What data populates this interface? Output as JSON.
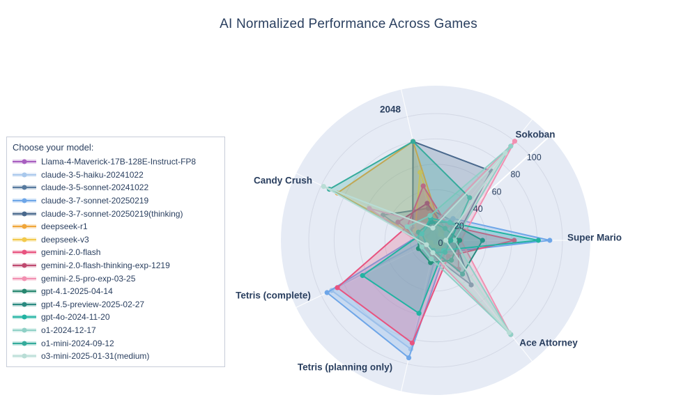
{
  "title": "AI Normalized Performance Across Games",
  "legend": {
    "title": "Choose your model:"
  },
  "chart_data": {
    "type": "radar",
    "categories": [
      "Super Mario",
      "Sokoban",
      "2048",
      "Candy Crush",
      "Tetris (complete)",
      "Tetris (planning only)",
      "Ace Attorney"
    ],
    "radial_ticks": [
      0,
      20,
      40,
      60,
      80,
      100
    ],
    "radial_range": [
      0,
      100
    ],
    "grid": true,
    "legend_position": "left",
    "colors": {
      "title_text": "#2a3f5f",
      "axis_text": "#2a3f5f",
      "polar_bg": "#e6ebf5",
      "grid_line": "#c9cedb",
      "axis_line": "#ffffff"
    },
    "series": [
      {
        "name": "Llama-4-Maverick-17B-128E-Instruct-FP8",
        "color": "#a85fc0",
        "values": [
          6,
          3,
          10,
          7,
          4,
          5,
          4
        ]
      },
      {
        "name": "claude-3-5-haiku-20241022",
        "color": "#a9c8ec",
        "values": [
          4,
          5,
          8,
          5,
          91,
          88,
          4
        ]
      },
      {
        "name": "claude-3-5-sonnet-20241022",
        "color": "#577a9e",
        "values": [
          12,
          20,
          26,
          46,
          8,
          10,
          10
        ]
      },
      {
        "name": "claude-3-7-sonnet-20250219",
        "color": "#6ea6e8",
        "values": [
          90,
          22,
          15,
          12,
          95,
          95,
          12
        ]
      },
      {
        "name": "claude-3-7-sonnet-20250219(thinking)",
        "color": "#49688c",
        "values": [
          15,
          70,
          80,
          20,
          10,
          12,
          45
        ]
      },
      {
        "name": "deepseek-r1",
        "color": "#f0a63a",
        "values": [
          8,
          8,
          80,
          86,
          5,
          6,
          8
        ]
      },
      {
        "name": "deepseek-v3",
        "color": "#f2c94c",
        "values": [
          10,
          6,
          55,
          18,
          4,
          5,
          5
        ]
      },
      {
        "name": "gemini-2.0-flash",
        "color": "#e8537f",
        "values": [
          62,
          15,
          44,
          25,
          86,
          83,
          16
        ]
      },
      {
        "name": "gemini-2.0-flash-thinking-exp-1219",
        "color": "#bf4a70",
        "values": [
          18,
          12,
          30,
          33,
          8,
          10,
          29
        ]
      },
      {
        "name": "gemini-2.5-pro-exp-03-25",
        "color": "#f290b1",
        "values": [
          20,
          100,
          12,
          58,
          10,
          12,
          95
        ]
      },
      {
        "name": "gpt-4.1-2025-04-14",
        "color": "#27876f",
        "values": [
          19,
          12,
          15,
          15,
          15,
          18,
          20
        ]
      },
      {
        "name": "gpt-4.5-preview-2025-02-27",
        "color": "#2a8a80",
        "values": [
          37,
          18,
          15,
          12,
          8,
          8,
          34
        ]
      },
      {
        "name": "gpt-4o-2024-11-20",
        "color": "#22b3a2",
        "values": [
          81,
          18,
          18,
          12,
          64,
          59,
          10
        ]
      },
      {
        "name": "o1-2024-12-17",
        "color": "#8fd0c6",
        "values": [
          15,
          95,
          20,
          25,
          12,
          15,
          95
        ]
      },
      {
        "name": "o1-mini-2024-09-12",
        "color": "#35ab9b",
        "values": [
          12,
          43,
          80,
          93,
          8,
          10,
          12
        ]
      },
      {
        "name": "o3-mini-2025-01-31(medium)",
        "color": "#b9ddd6",
        "values": [
          8,
          88,
          10,
          98,
          8,
          10,
          93
        ]
      }
    ]
  }
}
